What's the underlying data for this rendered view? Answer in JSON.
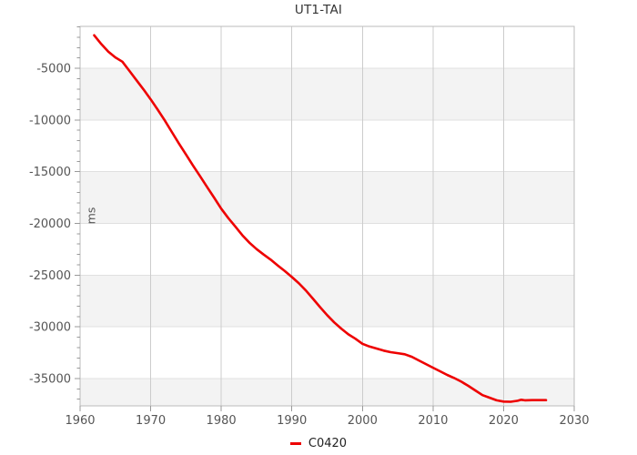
{
  "chart": {
    "title": "UT1-TAI",
    "ylabel": "ms",
    "legend_label": "C0420"
  },
  "colors": {
    "line": "#ee0000",
    "band": "#f3f3f3",
    "grid_h": "#e0e0e0",
    "grid_v": "#cccccc",
    "border": "#bbbbbb",
    "tick": "#999999",
    "tick_label": "#555555",
    "title_text": "#333333",
    "legend_text": "#222222",
    "background": "#ffffff"
  },
  "chart_data": {
    "type": "line",
    "title": "UT1-TAI",
    "xlabel": "",
    "ylabel": "ms",
    "legend": [
      "C0420"
    ],
    "legend_position": "bottom-center",
    "grid": true,
    "xlim": [
      1960,
      2030
    ],
    "ylim": [
      -37640,
      -950
    ],
    "x_ticks": [
      1960,
      1970,
      1980,
      1990,
      2000,
      2010,
      2020,
      2030
    ],
    "y_ticks": [
      -5000,
      -10000,
      -15000,
      -20000,
      -25000,
      -30000,
      -35000
    ],
    "y_minor_step": 1000,
    "bands": {
      "color": "#f3f3f3",
      "intervals": [
        [
          -5000,
          -10000
        ],
        [
          -15000,
          -20000
        ],
        [
          -25000,
          -30000
        ],
        [
          -35000,
          -37640
        ]
      ]
    },
    "series": [
      {
        "name": "C0420",
        "color": "#ee0000",
        "x": [
          1962,
          1963,
          1964,
          1965,
          1966,
          1967,
          1968,
          1969,
          1970,
          1971,
          1972,
          1973,
          1974,
          1975,
          1976,
          1977,
          1978,
          1979,
          1980,
          1981,
          1982,
          1983,
          1984,
          1985,
          1986,
          1987,
          1988,
          1989,
          1990,
          1991,
          1992,
          1993,
          1994,
          1995,
          1996,
          1997,
          1998,
          1999,
          2000,
          2001,
          2002,
          2003,
          2004,
          2005,
          2006,
          2007,
          2008,
          2009,
          2010,
          2011,
          2012,
          2013,
          2014,
          2015,
          2016,
          2017,
          2018,
          2019,
          2020,
          2021,
          2022,
          2022.5,
          2023,
          2024,
          2025,
          2026
        ],
        "y": [
          -1815,
          -2660,
          -3390,
          -3950,
          -4360,
          -5260,
          -6170,
          -7060,
          -8010,
          -9000,
          -10050,
          -11160,
          -12270,
          -13340,
          -14400,
          -15440,
          -16490,
          -17530,
          -18570,
          -19490,
          -20320,
          -21150,
          -21870,
          -22480,
          -23010,
          -23500,
          -24060,
          -24610,
          -25180,
          -25800,
          -26490,
          -27290,
          -28090,
          -28870,
          -29570,
          -30170,
          -30720,
          -31150,
          -31640,
          -31900,
          -32100,
          -32300,
          -32450,
          -32550,
          -32650,
          -32900,
          -33250,
          -33600,
          -33950,
          -34300,
          -34650,
          -34950,
          -35300,
          -35700,
          -36150,
          -36600,
          -36850,
          -37100,
          -37230,
          -37240,
          -37150,
          -37050,
          -37100,
          -37090,
          -37090,
          -37090
        ]
      }
    ]
  }
}
